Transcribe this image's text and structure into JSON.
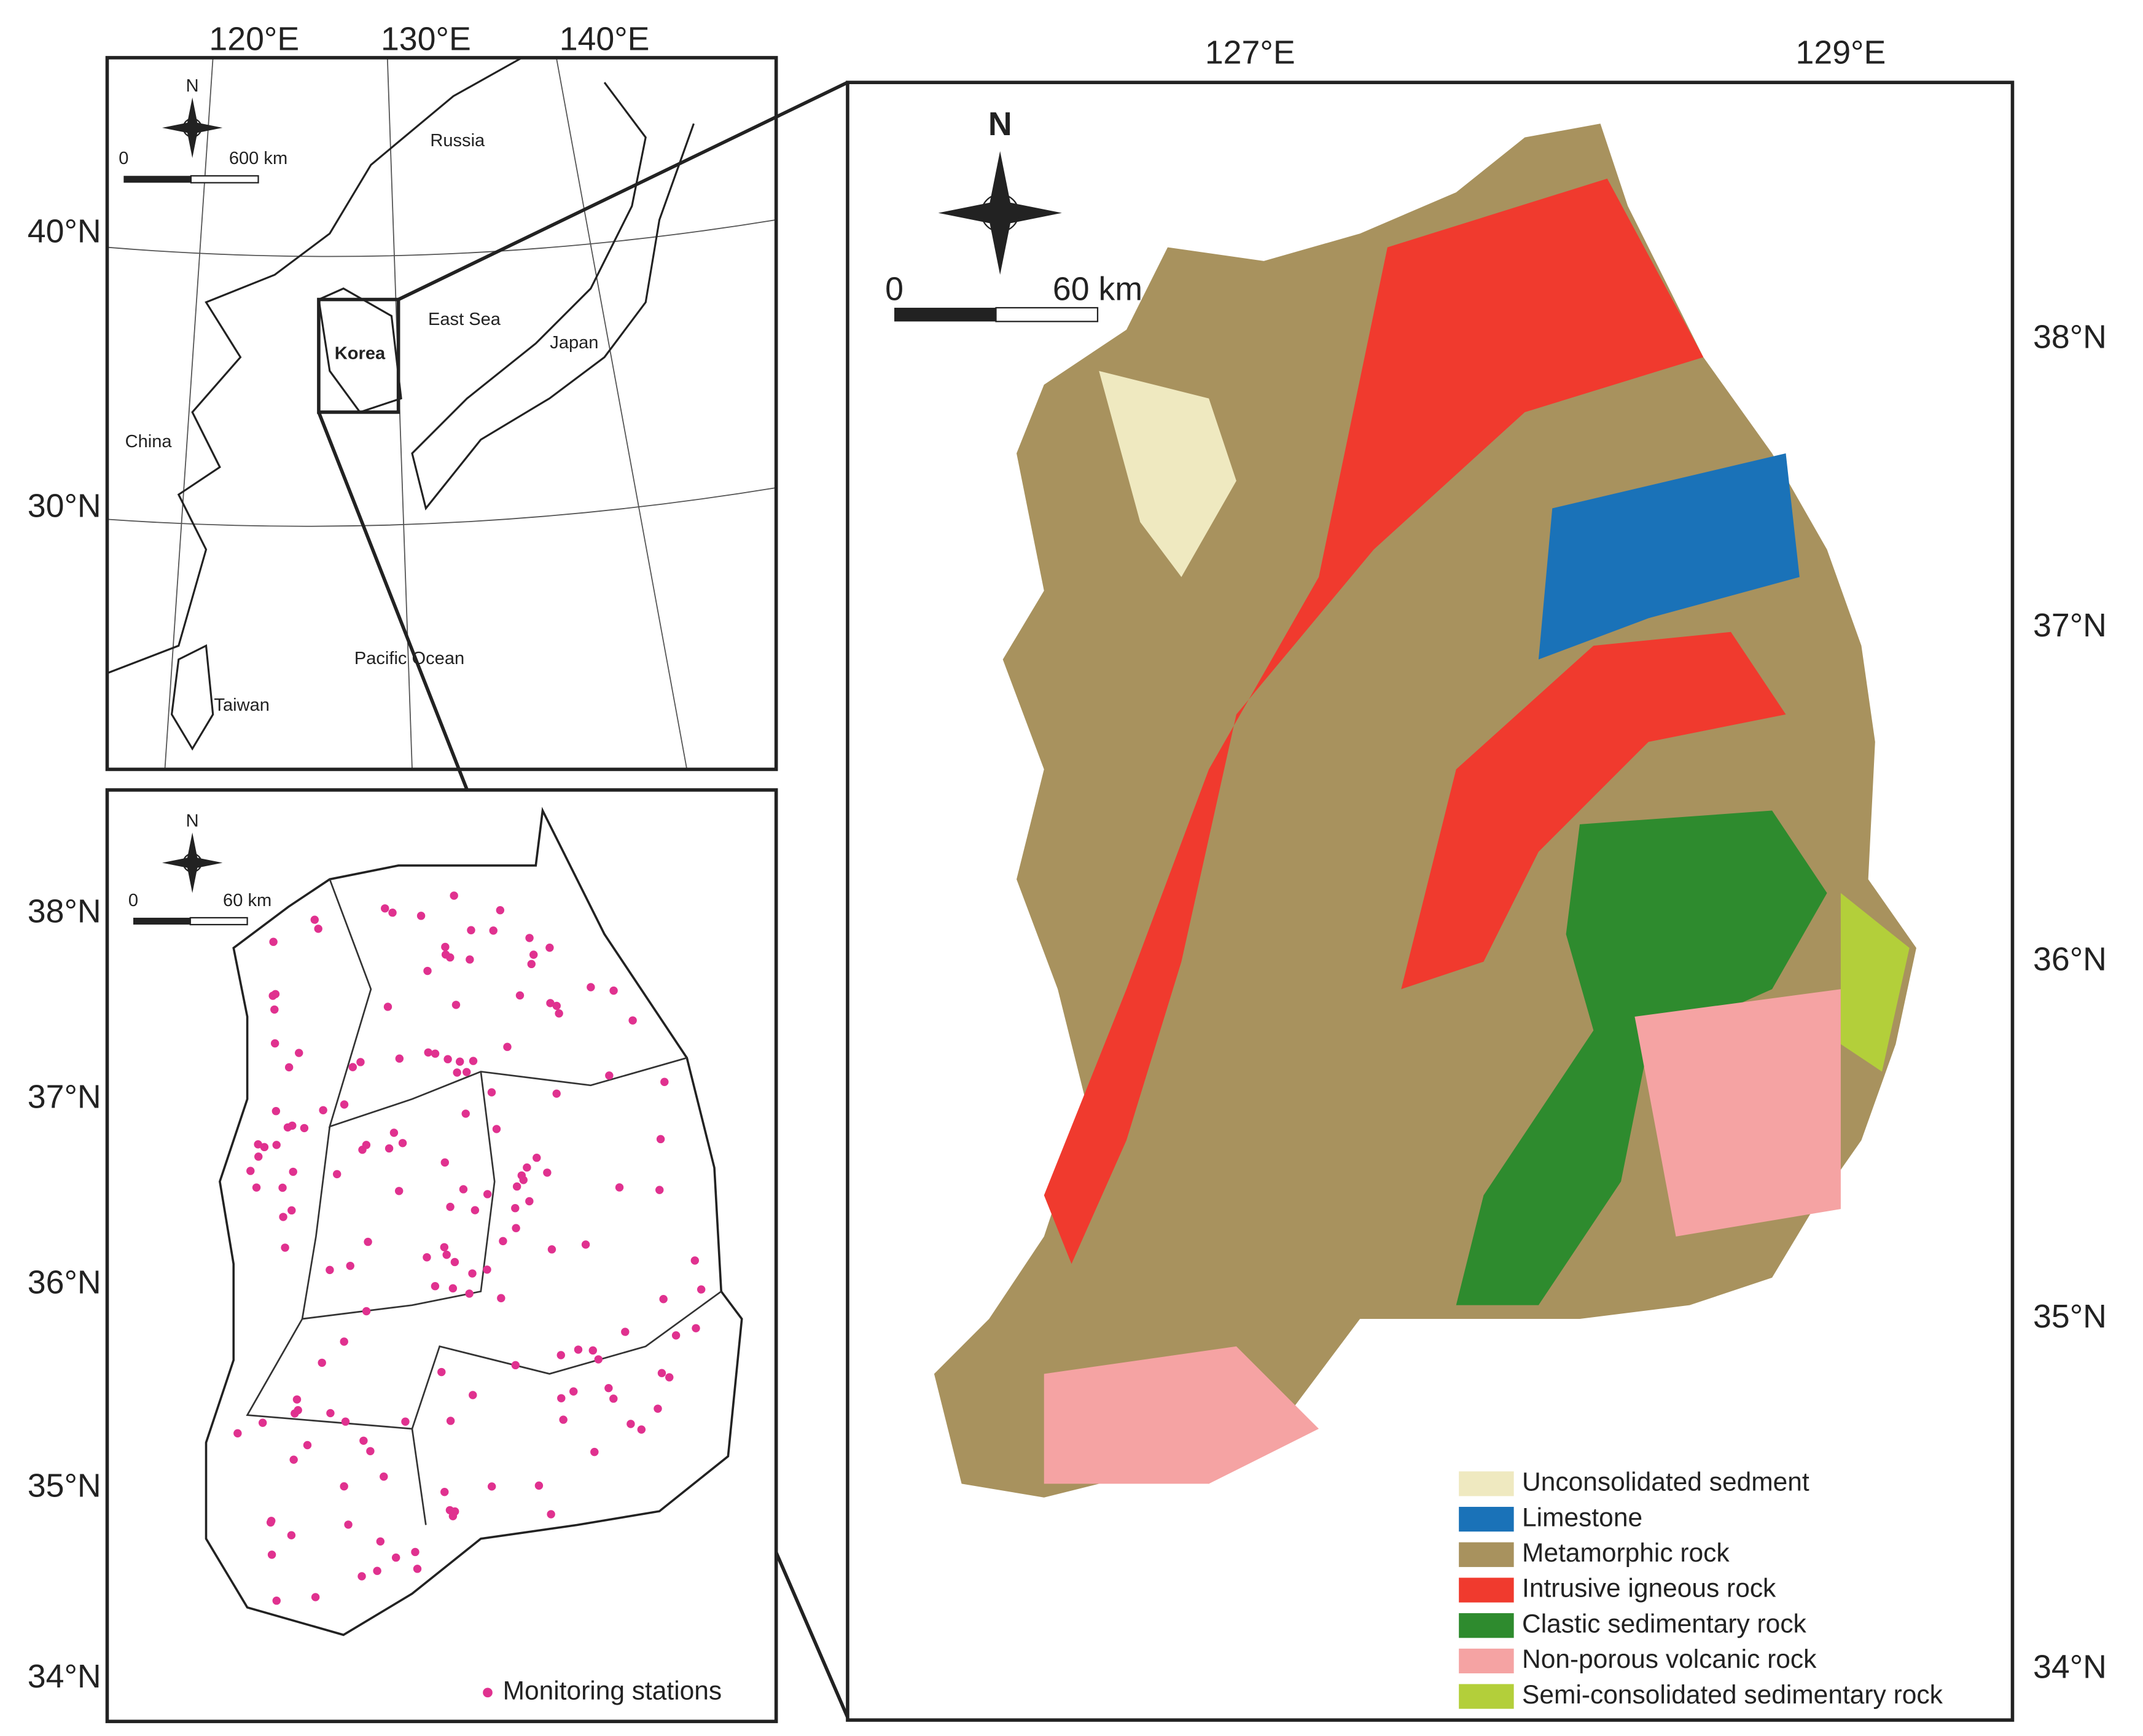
{
  "inset_map": {
    "compass": "N",
    "scale": [
      "0",
      "600 km"
    ],
    "lon_labels": [
      "120°E",
      "130°E",
      "140°E"
    ],
    "lat_labels": [
      "40°N",
      "30°N"
    ],
    "places": [
      "Russia",
      "East Sea",
      "Korea",
      "Japan",
      "China",
      "Pacific Ocean",
      "Taiwan"
    ]
  },
  "station_map": {
    "compass": "N",
    "scale": [
      "0",
      "60 km"
    ],
    "lat_labels": [
      "38°N",
      "37°N",
      "36°N",
      "35°N",
      "34°N"
    ],
    "legend": {
      "label": "Monitoring stations",
      "color": "#e0318f"
    }
  },
  "geology_map": {
    "compass": "N",
    "scale": [
      "0",
      "60 km"
    ],
    "lon_labels": [
      "127°E",
      "129°E"
    ],
    "lat_labels": [
      "38°N",
      "37°N",
      "36°N",
      "35°N",
      "34°N"
    ],
    "legend": [
      {
        "label": "Unconsolidated sedment",
        "color": "#efe9c0"
      },
      {
        "label": "Limestone",
        "color": "#1a72b8"
      },
      {
        "label": "Metamorphic rock",
        "color": "#a8925e"
      },
      {
        "label": "Intrusive igneous rock",
        "color": "#f03a2e"
      },
      {
        "label": "Clastic sedimentary rock",
        "color": "#2e8b2e"
      },
      {
        "label": "Non-porous volcanic rock",
        "color": "#f5a3a3"
      },
      {
        "label": "Semi-consolidated sedimentary rock",
        "color": "#b3cf3a"
      }
    ]
  }
}
